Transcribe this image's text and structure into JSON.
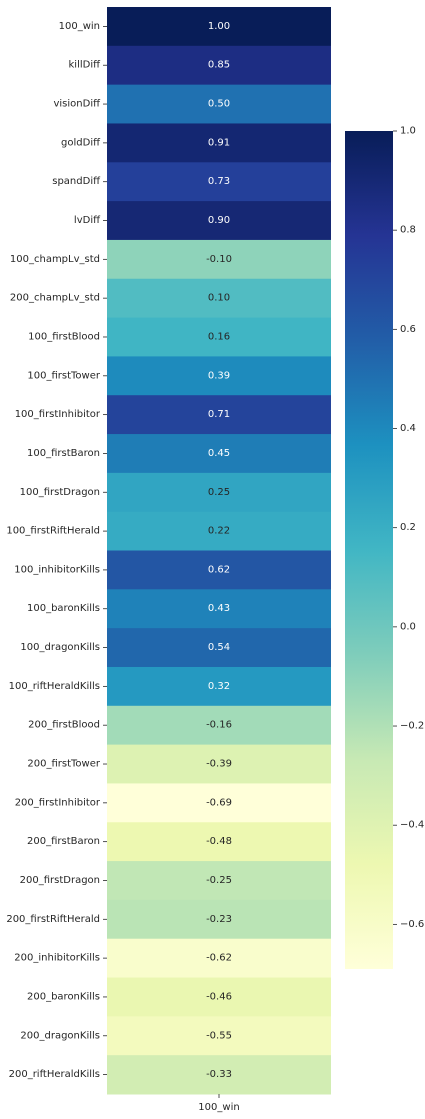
{
  "chart_data": {
    "type": "heatmap",
    "title": "",
    "xlabel": "",
    "ylabel": "",
    "columns": [
      "100_win"
    ],
    "rows": [
      "100_win",
      "killDiff",
      "visionDiff",
      "goldDiff",
      "spandDiff",
      "lvDiff",
      "100_champLv_std",
      "200_champLv_std",
      "100_firstBlood",
      "100_firstTower",
      "100_firstInhibitor",
      "100_firstBaron",
      "100_firstDragon",
      "100_firstRiftHerald",
      "100_inhibitorKills",
      "100_baronKills",
      "100_dragonKills",
      "100_riftHeraldKills",
      "200_firstBlood",
      "200_firstTower",
      "200_firstInhibitor",
      "200_firstBaron",
      "200_firstDragon",
      "200_firstRiftHerald",
      "200_inhibitorKills",
      "200_baronKills",
      "200_dragonKills",
      "200_riftHeraldKills"
    ],
    "values": [
      1.0,
      0.85,
      0.5,
      0.91,
      0.73,
      0.9,
      -0.1,
      0.1,
      0.16,
      0.39,
      0.71,
      0.45,
      0.25,
      0.22,
      0.62,
      0.43,
      0.54,
      0.32,
      -0.16,
      -0.39,
      -0.69,
      -0.48,
      -0.25,
      -0.23,
      -0.62,
      -0.46,
      -0.55,
      -0.33
    ],
    "value_labels": [
      "1.00",
      "0.85",
      "0.50",
      "0.91",
      "0.73",
      "0.90",
      "-0.10",
      "0.10",
      "0.16",
      "0.39",
      "0.71",
      "0.45",
      "0.25",
      "0.22",
      "0.62",
      "0.43",
      "0.54",
      "0.32",
      "-0.16",
      "-0.39",
      "-0.69",
      "-0.48",
      "-0.25",
      "-0.23",
      "-0.62",
      "-0.46",
      "-0.55",
      "-0.33"
    ],
    "colormap": "YlGnBu",
    "vmin": -0.69,
    "vmax": 1.0,
    "colorbar": {
      "position": "right",
      "ticks": [
        1.0,
        0.8,
        0.6,
        0.4,
        0.2,
        0.0,
        -0.2,
        -0.4,
        -0.6
      ],
      "tick_labels": [
        "1.0",
        "0.8",
        "0.6",
        "0.4",
        "0.2",
        "0.0",
        "−0.2",
        "−0.4",
        "−0.6"
      ]
    },
    "grid": false
  }
}
